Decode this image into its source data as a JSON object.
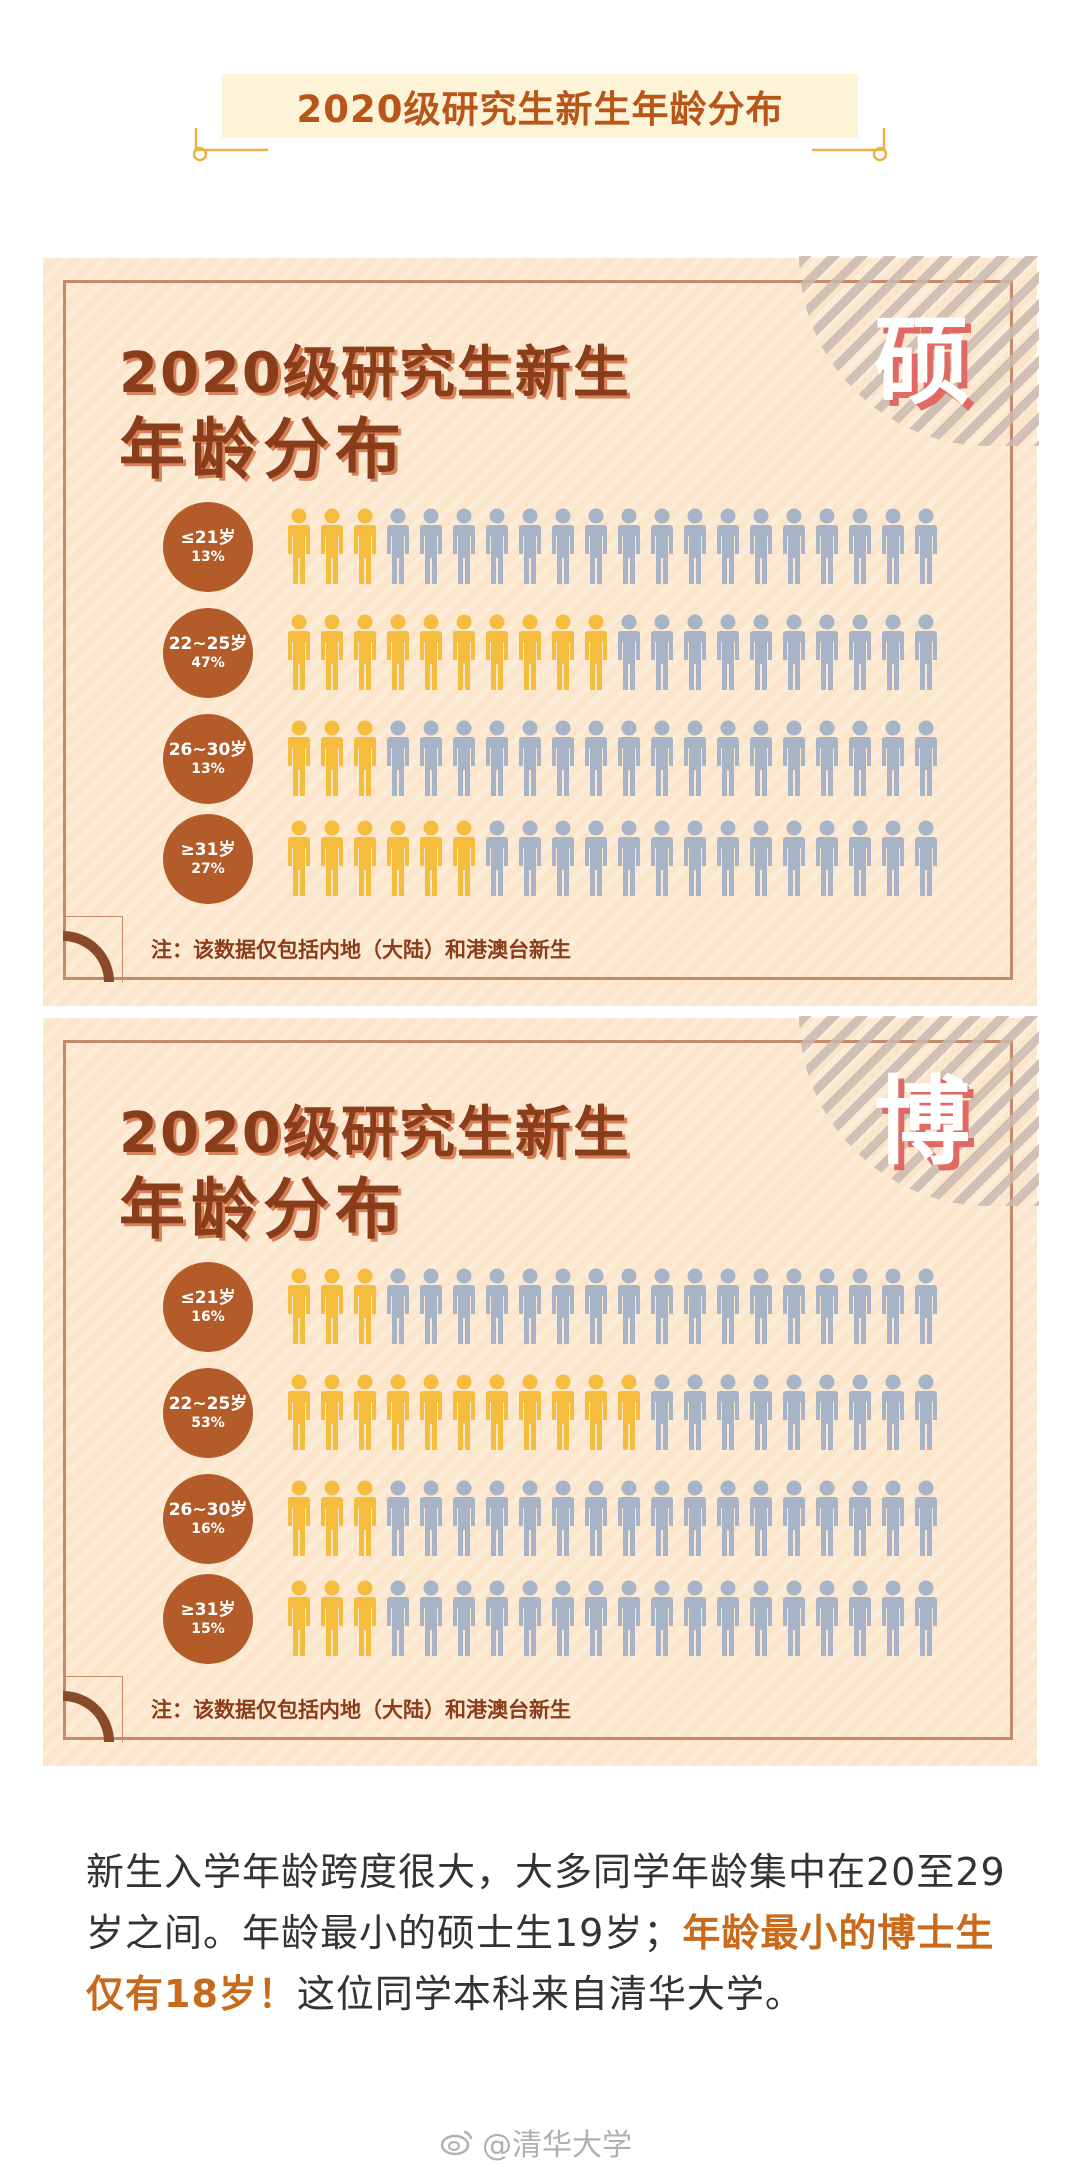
{
  "header": {
    "title": "2020级研究生新生年龄分布"
  },
  "chart_data": [
    {
      "type": "pictograph",
      "badge": "硕",
      "title_line1": "2020级研究生新生",
      "title_line2": "年龄分布",
      "note": "注：该数据仅包括内地（大陆）和港澳台新生",
      "icons_per_row": 20,
      "colors": {
        "highlight": "#f6bc3e",
        "rest": "#a7b3c6",
        "circle": "#b35c2a"
      },
      "categories": [
        "≤21岁",
        "22~25岁",
        "26~30岁",
        "≥31岁"
      ],
      "percent_labels": [
        "13%",
        "47%",
        "13%",
        "27%"
      ],
      "values": [
        13,
        47,
        13,
        27
      ],
      "highlighted_icons": [
        3,
        10,
        3,
        6
      ]
    },
    {
      "type": "pictograph",
      "badge": "博",
      "title_line1": "2020级研究生新生",
      "title_line2": "年龄分布",
      "note": "注：该数据仅包括内地（大陆）和港澳台新生",
      "icons_per_row": 20,
      "colors": {
        "highlight": "#f6bc3e",
        "rest": "#a7b3c6",
        "circle": "#b35c2a"
      },
      "categories": [
        "≤21岁",
        "22~25岁",
        "26~30岁",
        "≥31岁"
      ],
      "percent_labels": [
        "16%",
        "53%",
        "16%",
        "15%"
      ],
      "values": [
        16,
        53,
        16,
        15
      ],
      "highlighted_icons": [
        3,
        11,
        3,
        3
      ]
    }
  ],
  "paragraph": {
    "part1": "新生入学年龄跨度很大，大多同学年龄集中在20至29岁之间。年龄最小的硕士生19岁；",
    "highlight": "年龄最小的博士生仅有18岁！",
    "part2": "这位同学本科来自清华大学。"
  },
  "watermark": {
    "text": "@清华大学",
    "icon": "weibo-icon"
  }
}
